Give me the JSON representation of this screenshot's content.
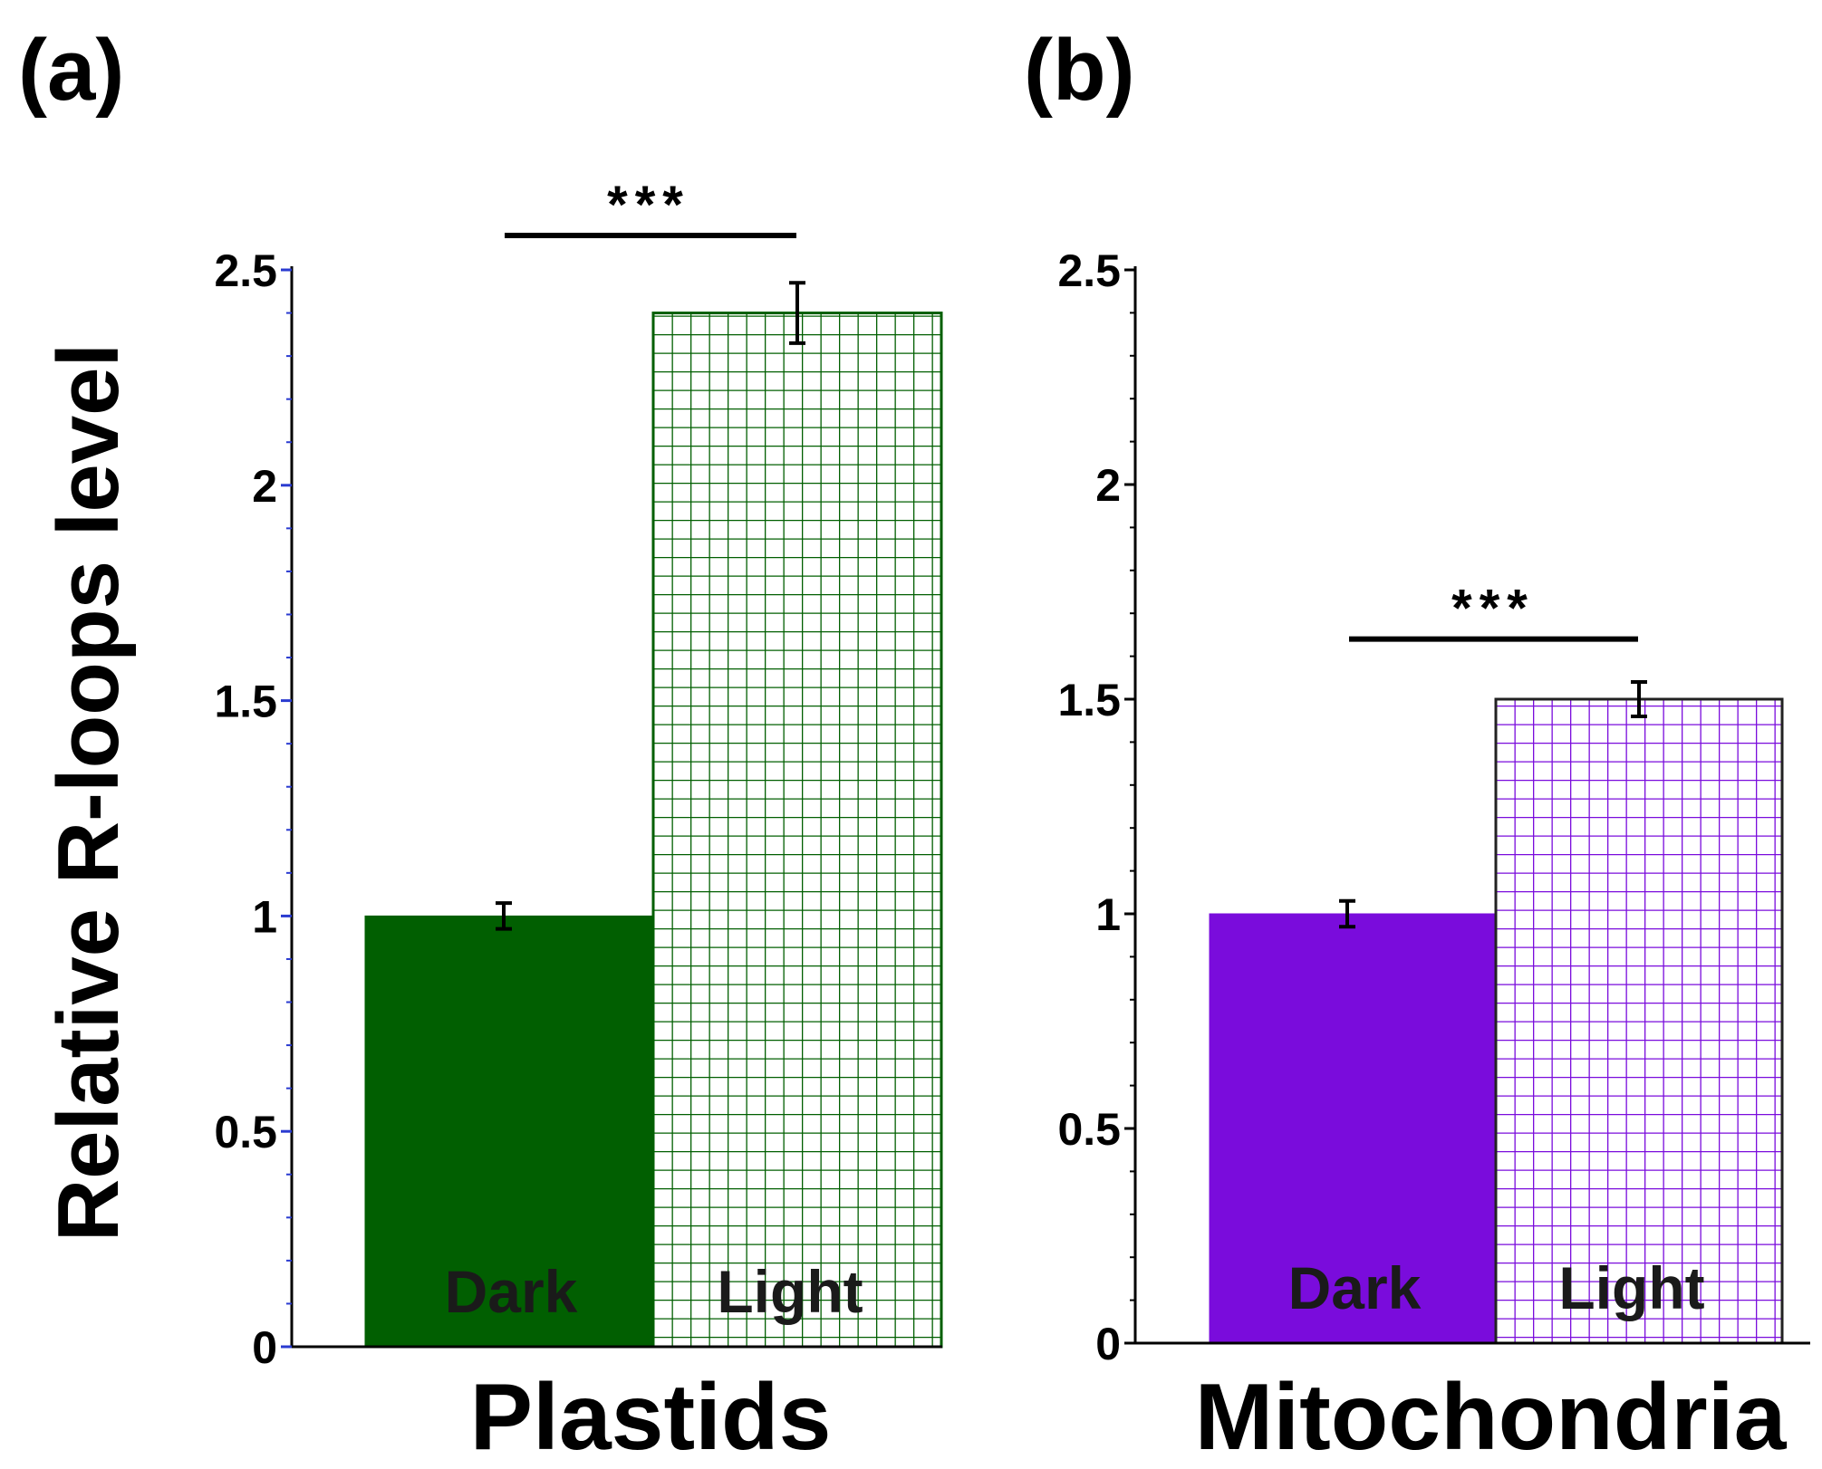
{
  "figure": {
    "ylabel": "Relative R-loops level"
  },
  "chart_data": [
    {
      "type": "bar",
      "panel": "(a)",
      "xlabel": "Plastids",
      "ylabel": "Relative R-loops level",
      "categories": [
        "Dark",
        "Light"
      ],
      "values": [
        1.0,
        2.4
      ],
      "errors": [
        0.03,
        0.07
      ],
      "fills": [
        "solid",
        "grid"
      ],
      "color": "#015f01",
      "ylim": [
        0,
        2.5
      ],
      "yticks": [
        "0",
        "0.5",
        "1",
        "1.5",
        "2",
        "2.5"
      ],
      "significance": "***",
      "significance_level": 2.58
    },
    {
      "type": "bar",
      "panel": "(b)",
      "xlabel": "Mitochondria",
      "ylabel": "",
      "categories": [
        "Dark",
        "Light"
      ],
      "values": [
        1.0,
        1.5
      ],
      "errors": [
        0.03,
        0.04
      ],
      "fills": [
        "solid",
        "grid"
      ],
      "color": "#7a0cdc",
      "ylim": [
        0,
        2.5
      ],
      "yticks": [
        "0",
        "0.5",
        "1",
        "1.5",
        "2",
        "2.5"
      ],
      "significance": "***",
      "significance_level": 1.64
    }
  ]
}
